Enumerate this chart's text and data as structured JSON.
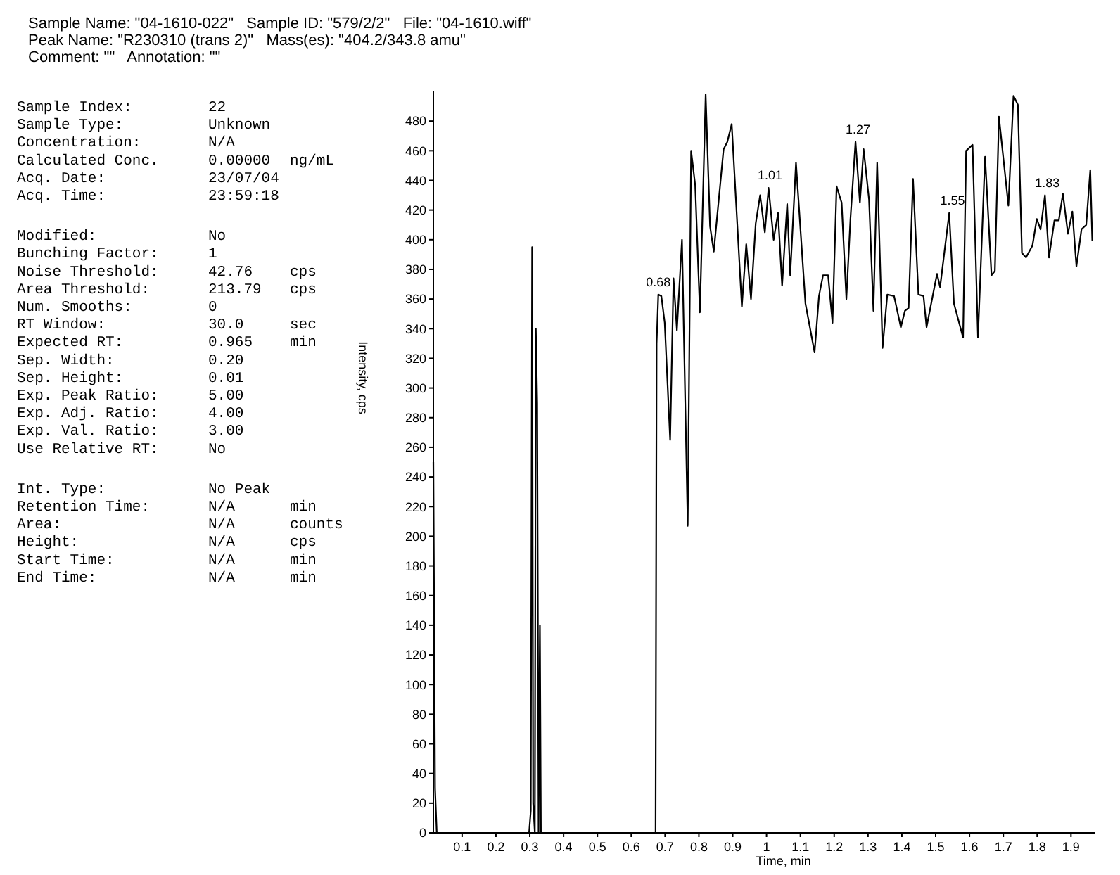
{
  "chart_data": {
    "type": "line",
    "xlabel": "Time, min",
    "ylabel": "Intensity, cps",
    "xlim": [
      0.015,
      1.97
    ],
    "ylim": [
      0,
      500
    ],
    "xticks": [
      0.1,
      0.2,
      0.3,
      0.4,
      0.5,
      0.6,
      0.7,
      0.8,
      0.9,
      1.0,
      1.1,
      1.2,
      1.3,
      1.4,
      1.5,
      1.6,
      1.7,
      1.8,
      1.9
    ],
    "yticks": [
      0,
      20,
      40,
      60,
      80,
      100,
      120,
      140,
      160,
      180,
      200,
      220,
      240,
      260,
      280,
      300,
      320,
      340,
      360,
      380,
      400,
      420,
      440,
      460,
      480
    ],
    "grid": false,
    "marker": "none",
    "line_style": "solid",
    "series": [
      {
        "color": "#000000",
        "x": [
          0.015,
          0.02,
          0.025,
          0.298,
          0.303,
          0.307,
          0.31,
          0.315,
          0.318,
          0.322,
          0.326,
          0.33,
          0.333,
          0.672,
          0.675,
          0.68,
          0.689,
          0.699,
          0.715,
          0.725,
          0.735,
          0.75,
          0.767,
          0.777,
          0.789,
          0.803,
          0.82,
          0.833,
          0.844,
          0.873,
          0.884,
          0.897,
          0.927,
          0.94,
          0.954,
          0.968,
          0.981,
          0.995,
          1.006,
          1.021,
          1.034,
          1.046,
          1.061,
          1.07,
          1.087,
          1.115,
          1.142,
          1.155,
          1.167,
          1.182,
          1.195,
          1.207,
          1.222,
          1.236,
          1.248,
          1.263,
          1.276,
          1.287,
          1.303,
          1.316,
          1.327,
          1.343,
          1.357,
          1.377,
          1.397,
          1.409,
          1.42,
          1.433,
          1.449,
          1.464,
          1.473,
          1.504,
          1.513,
          1.54,
          1.554,
          1.581,
          1.59,
          1.609,
          1.625,
          1.646,
          1.665,
          1.675,
          1.687,
          1.715,
          1.73,
          1.743,
          1.755,
          1.767,
          1.786,
          1.799,
          1.81,
          1.823,
          1.835,
          1.851,
          1.864,
          1.876,
          1.891,
          1.904,
          1.916,
          1.931,
          1.945,
          1.957,
          1.963
        ],
        "values": [
          250,
          30,
          0,
          0,
          15,
          395,
          20,
          0,
          340,
          290,
          0,
          140,
          0,
          0,
          330,
          363,
          362,
          344,
          265,
          374,
          339,
          400,
          207,
          460,
          437,
          351,
          498,
          409,
          392,
          461,
          466,
          478,
          355,
          397,
          360,
          411,
          430,
          405,
          435,
          400,
          418,
          369,
          424,
          376,
          452,
          357,
          324,
          362,
          376,
          376,
          344,
          436,
          425,
          360,
          414,
          466,
          425,
          461,
          427,
          352,
          452,
          327,
          363,
          362,
          341,
          352,
          354,
          441,
          363,
          362,
          341,
          377,
          368,
          418,
          357,
          334,
          460,
          464,
          334,
          456,
          376,
          379,
          483,
          423,
          497,
          491,
          391,
          388,
          396,
          414,
          407,
          430,
          388,
          413,
          413,
          431,
          404,
          419,
          382,
          407,
          410,
          447,
          399
        ]
      }
    ],
    "annotations": [
      "Sample Name: \"04-1610-022\"   Sample ID: \"579/2/2\"   File: \"04-1610.wiff\"",
      "Peak Name: \"R230310 (trans 2)\"   Mass(es): \"404.2/343.8 amu\"",
      "Comment: \"\"   Annotation: \"\"",
      "Sample Index:\t22",
      "Sample Type:\tUnknown",
      "Concentration:\tN/A",
      "Calculated Conc.\t0.00000\tng/mL",
      "Acq. Date:\t23/07/04",
      "Acq. Time:\t23:59:18",
      "Modified:\tNo",
      "Bunching Factor:\t1",
      "Noise Threshold:\t42.76\tcps",
      "Area Threshold:\t213.79\tcps",
      "Num. Smooths:\t0",
      "RT Window:\t30.0\tsec",
      "Expected RT:\t0.965\tmin",
      "Sep. Width:\t0.20",
      "Sep. Height:\t0.01",
      "Exp. Peak Ratio:\t5.00",
      "Exp. Adj. Ratio:\t4.00",
      "Exp. Val. Ratio:\t3.00",
      "Use Relative RT:\tNo",
      "Int. Type:\tNo Peak",
      "Retention Time:\tN/A\tmin",
      "Area:\tN/A\tcounts",
      "Height:\tN/A\tcps",
      "Start Time:\tN/A\tmin",
      "End Time:\tN/A\tmin",
      {
        "text": "0.68",
        "x": 0.68,
        "y": 363
      },
      {
        "text": "1.01",
        "x": 1.01,
        "y": 435
      },
      {
        "text": "1.27",
        "x": 1.27,
        "y": 466
      },
      {
        "text": "1.55",
        "x": 1.55,
        "y": 418
      },
      {
        "text": "1.83",
        "x": 1.83,
        "y": 430
      }
    ]
  }
}
